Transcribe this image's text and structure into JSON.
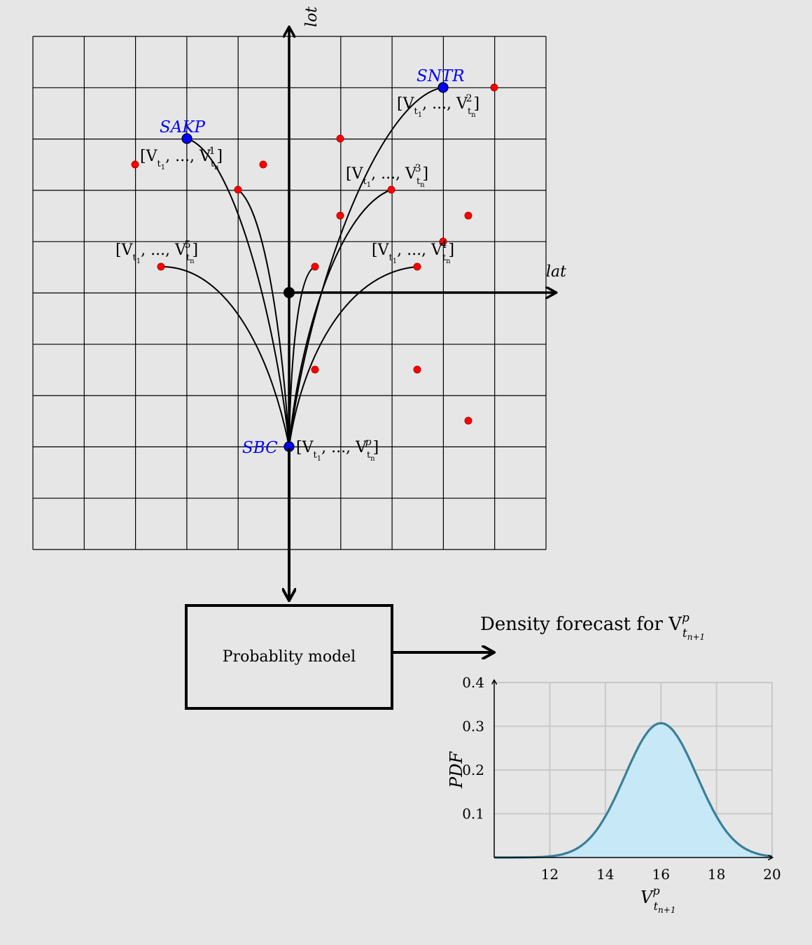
{
  "axes": {
    "lot": "lot",
    "lat": "lat"
  },
  "stations": {
    "sakp": {
      "name": "SAKP"
    },
    "sntr": {
      "name": "SNTR"
    },
    "sbc": {
      "name": "SBC"
    }
  },
  "series_labels": {
    "v1": {
      "open": "[V",
      "sub1": "t",
      "sub1b": "1",
      "mid": ", ..., V",
      "sub2": "t",
      "sub2b": "n",
      "sup": "1",
      "close": "]"
    },
    "v2": {
      "open": "[V",
      "sub1": "t",
      "sub1b": "1",
      "mid": ", ..., V",
      "sub2": "t",
      "sub2b": "n",
      "sup": "2",
      "close": "]"
    },
    "v3": {
      "open": "[V",
      "sub1": "t",
      "sub1b": "1",
      "mid": ", ..., V",
      "sub2": "t",
      "sub2b": "n",
      "sup": "3",
      "close": "]"
    },
    "v4": {
      "open": "[V",
      "sub1": "t",
      "sub1b": "1",
      "mid": ", ..., V",
      "sub2": "t",
      "sub2b": "n",
      "sup": "4",
      "close": "]"
    },
    "v5": {
      "open": "[V",
      "sub1": "t",
      "sub1b": "1",
      "mid": ", ..., V",
      "sub2": "t",
      "sub2b": "n",
      "sup": "5",
      "close": "]"
    },
    "vp": {
      "open": "[V",
      "sub1": "t",
      "sub1b": "1",
      "mid": ", ..., V",
      "sub2": "t",
      "sub2b": "n",
      "sup": "p",
      "close": "]"
    }
  },
  "model_box": {
    "label": "Probablity model"
  },
  "forecast": {
    "title": "Density forecast for V",
    "title_sup": "p",
    "title_sub": "t",
    "title_subsub": "n+1"
  },
  "chart_data": {
    "type": "area",
    "title": "",
    "ylabel": "PDF",
    "xlabel_main": "V",
    "xlabel_sup": "p",
    "xlabel_sub": "t",
    "xlabel_subsub": "n+1",
    "xlim": [
      10,
      20
    ],
    "ylim": [
      0,
      0.4
    ],
    "xticks": [
      "12",
      "14",
      "16",
      "18",
      "20"
    ],
    "yticks": [
      "0.1",
      "0.2",
      "0.3",
      "0.4"
    ],
    "distribution": {
      "kind": "normal",
      "mean": 16,
      "sd": 1.3,
      "peak": 0.307
    },
    "grid": true,
    "fill_color": "#c6e8f7",
    "line_color": "#3a7f98"
  },
  "colors": {
    "station": "#0000ff",
    "point": "#ff0000",
    "line": "#000000"
  }
}
